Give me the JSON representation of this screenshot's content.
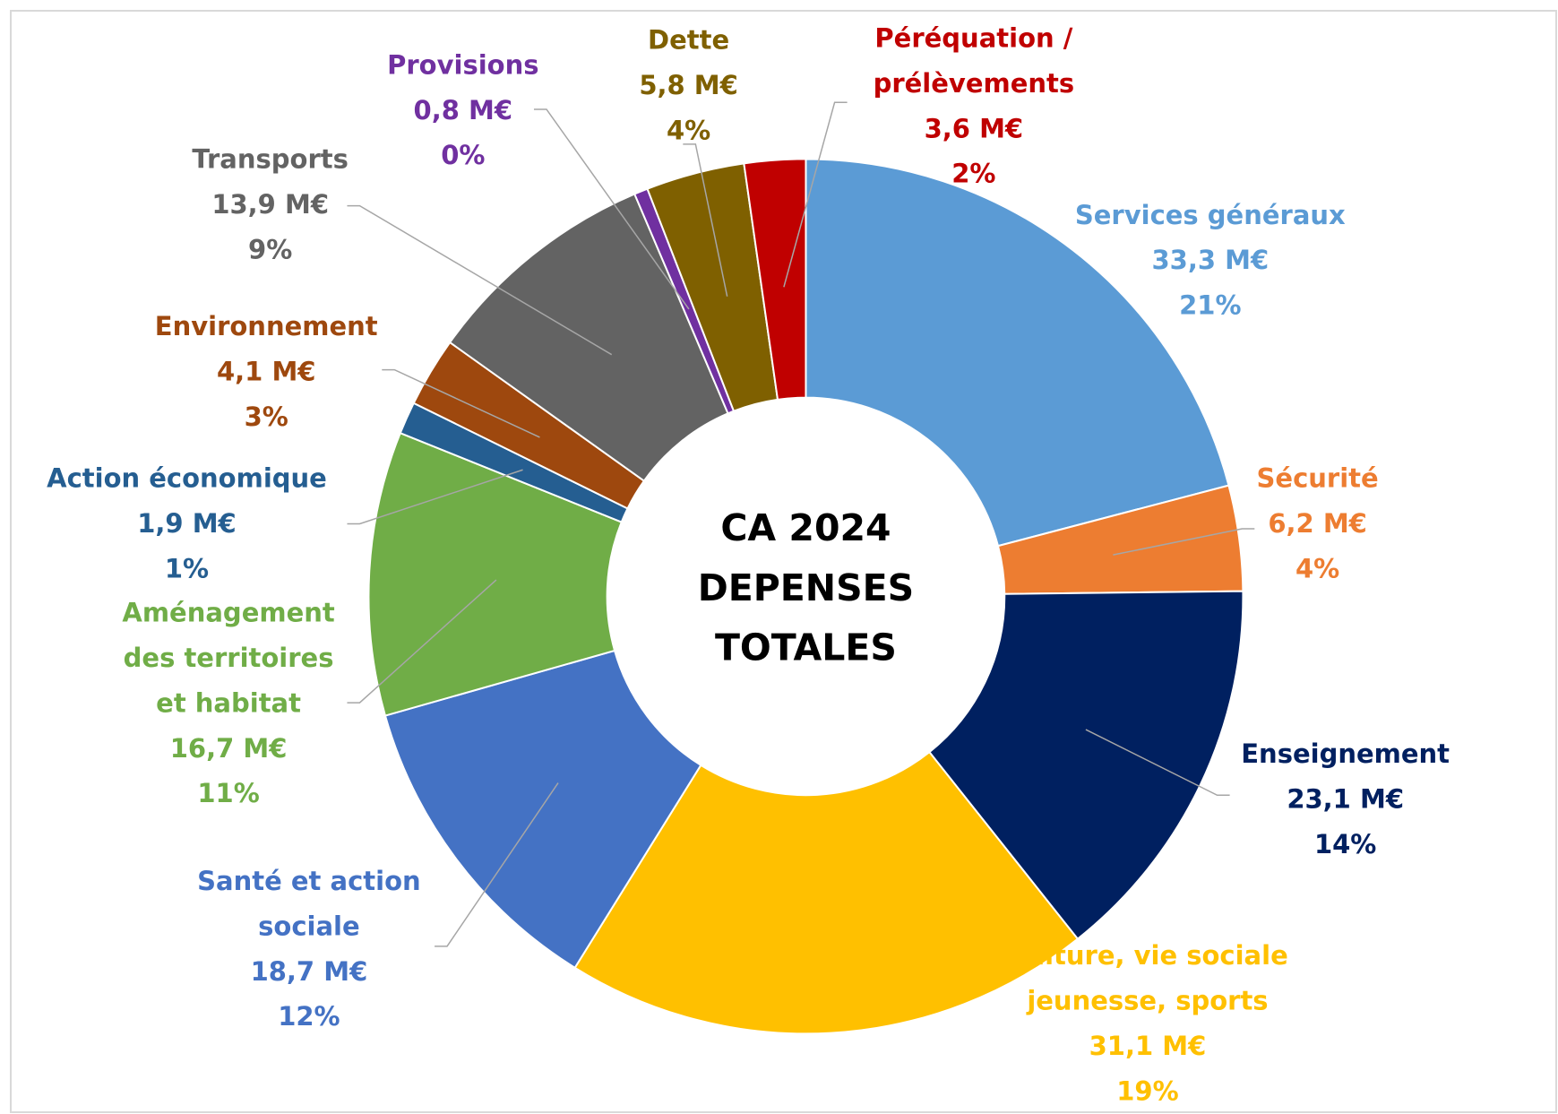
{
  "chart_data": {
    "type": "donut",
    "title": "CA 2024\nDEPENSES\nTOTALES",
    "categories": [
      "Services généraux",
      "Sécurité",
      "Enseignement",
      "Culture, vie sociale\njeunesse, sports",
      "Santé et action\nsociale",
      "Aménagement\ndes territoires\net habitat",
      "Action économique",
      "Environnement",
      "Transports",
      "Provisions",
      "Dette",
      "Péréquation /\nprélèvements"
    ],
    "values": [
      33.3,
      6.2,
      23.1,
      31.1,
      18.7,
      16.7,
      1.9,
      4.1,
      13.9,
      0.8,
      5.8,
      3.6
    ],
    "value_labels": [
      "33,3 M€",
      "6,2 M€",
      "23,1 M€",
      "31,1 M€",
      "18,7 M€",
      "16,7 M€",
      "1,9 M€",
      "4,1 M€",
      "13,9 M€",
      "0,8 M€",
      "5,8  M€",
      "3,6 M€"
    ],
    "percent_labels": [
      "21%",
      "4%",
      "14%",
      "19%",
      "12%",
      "11%",
      "1%",
      "3%",
      "9%",
      "0%",
      "4%",
      "2%"
    ],
    "colors": [
      "#5b9bd5",
      "#ed7d31",
      "#002060",
      "#ffc000",
      "#4472c4",
      "#70ad47",
      "#255e91",
      "#9e480e",
      "#636363",
      "#7030a0",
      "#7f6000",
      "#c00000"
    ]
  }
}
